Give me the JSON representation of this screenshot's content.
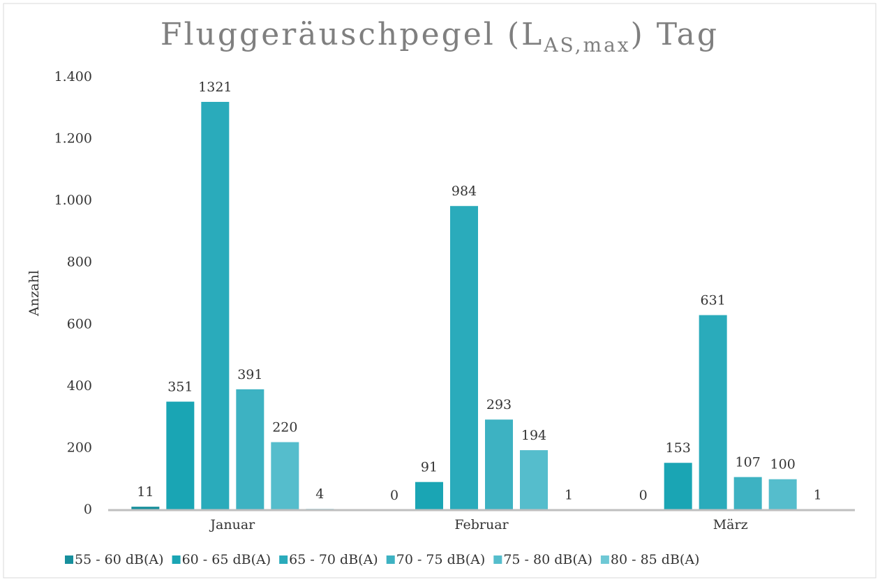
{
  "chart_data": {
    "type": "bar",
    "title_parts": [
      "Fluggeräuschpegel (L",
      "AS,max",
      ") Tag"
    ],
    "y_label": "Anzahl",
    "categories": [
      "Januar",
      "Februar",
      "März"
    ],
    "series": [
      {
        "name": "55 - 60 dB(A)",
        "color": "#178f9c",
        "values": [
          11,
          0,
          0
        ]
      },
      {
        "name": "60 - 65 dB(A)",
        "color": "#1aa5b4",
        "values": [
          351,
          91,
          153
        ]
      },
      {
        "name": "65 - 70 dB(A)",
        "color": "#2aabbb",
        "values": [
          1321,
          984,
          631
        ]
      },
      {
        "name": "70 - 75 dB(A)",
        "color": "#3db2c2",
        "values": [
          391,
          293,
          107
        ]
      },
      {
        "name": "75 - 80 dB(A)",
        "color": "#55bdcc",
        "values": [
          220,
          194,
          100
        ]
      },
      {
        "name": "80 - 85 dB(A)",
        "color": "#6ec8d5",
        "values": [
          4,
          1,
          1
        ]
      }
    ],
    "ylim": [
      0,
      1400
    ],
    "yticks": [
      0,
      200,
      400,
      600,
      800,
      {
        "value": 1000,
        "label": "1.000"
      },
      {
        "value": 1200,
        "label": "1.200"
      },
      {
        "value": 1400,
        "label": "1.400"
      }
    ],
    "legend": "bottom"
  }
}
